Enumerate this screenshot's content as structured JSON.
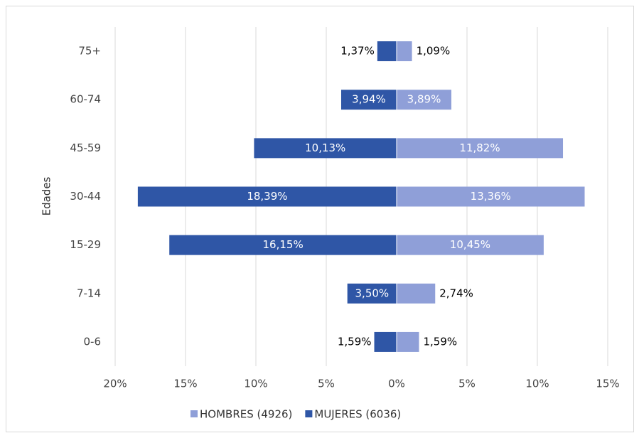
{
  "chart_data": {
    "type": "bar",
    "orientation": "horizontal",
    "stacked": "diverging",
    "ylabel": "Edades",
    "categories": [
      "75+",
      "60-74",
      "45-59",
      "30-44",
      "15-29",
      "7-14",
      "0-6"
    ],
    "series": [
      {
        "name": "HOMBRES (4926)",
        "color": "#8f9fd8",
        "values": [
          1.09,
          3.89,
          11.82,
          13.36,
          10.45,
          2.74,
          1.59
        ],
        "value_labels": [
          "1,09%",
          "3,89%",
          "11,82%",
          "13,36%",
          "10,45%",
          "2,74%",
          "1,59%"
        ]
      },
      {
        "name": "MUJERES (6036)",
        "color": "#2f56a6",
        "values": [
          -1.37,
          -3.94,
          -10.13,
          -18.39,
          -16.15,
          -3.5,
          -1.59
        ],
        "value_labels": [
          "1,37%",
          "3,94%",
          "10,13%",
          "18,39%",
          "16,15%",
          "3,50%",
          "1,59%"
        ]
      }
    ],
    "xlim": [
      -20,
      15
    ],
    "xticks": [
      {
        "value": -20,
        "label": "20%"
      },
      {
        "value": -15,
        "label": "15%"
      },
      {
        "value": -10,
        "label": "10%"
      },
      {
        "value": -5,
        "label": "5%"
      },
      {
        "value": 0,
        "label": "0%"
      },
      {
        "value": 5,
        "label": "5%"
      },
      {
        "value": 10,
        "label": "10%"
      },
      {
        "value": 15,
        "label": "15%"
      }
    ],
    "grid": true,
    "legend": "bottom"
  }
}
